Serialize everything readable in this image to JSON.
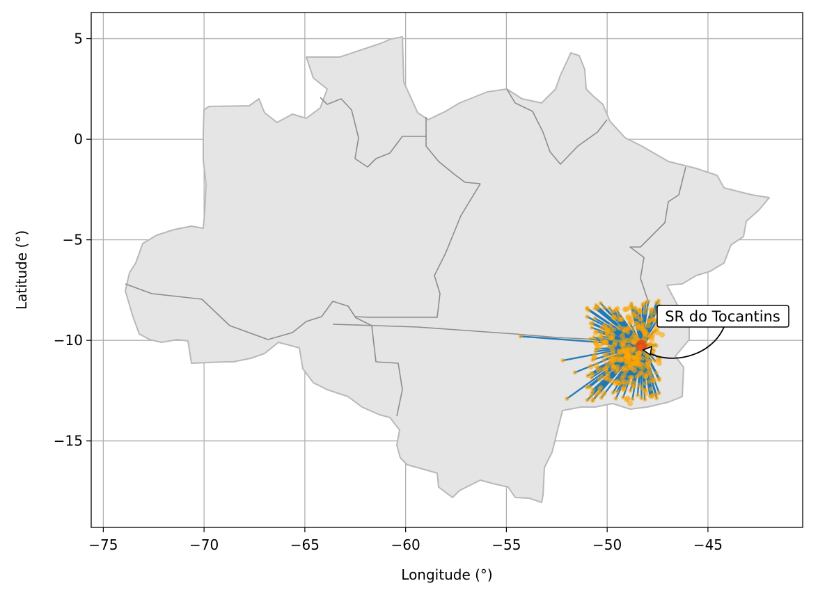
{
  "chart_data": {
    "type": "map",
    "xlabel": "Longitude (°)",
    "ylabel": "Latitude (°)",
    "xlim": [
      -75.6,
      -40.3
    ],
    "ylim": [
      -19.3,
      6.3
    ],
    "xticks": [
      -75,
      -70,
      -65,
      -60,
      -55,
      -50,
      -45
    ],
    "yticks": [
      5,
      0,
      -5,
      -10,
      -15
    ],
    "tick_labels_x": [
      "−75",
      "−70",
      "−65",
      "−60",
      "−55",
      "−50",
      "−45"
    ],
    "tick_labels_y": [
      "5",
      "0",
      "−5",
      "−10",
      "−15"
    ],
    "grid": true,
    "annotation": {
      "text": "SR do Tocantins",
      "point": {
        "lon": -48.3,
        "lat": -10.3
      }
    },
    "hub": {
      "lon": -48.3,
      "lat": -10.25
    },
    "colors": {
      "region_fill": "#e5e5e5",
      "region_edge": "#b8b8b8",
      "state_border": "#8c8c8c",
      "links": "#1f77b4",
      "points": "#ffa500",
      "hub": "#ff4500",
      "grid": "#b0b0b0"
    }
  }
}
